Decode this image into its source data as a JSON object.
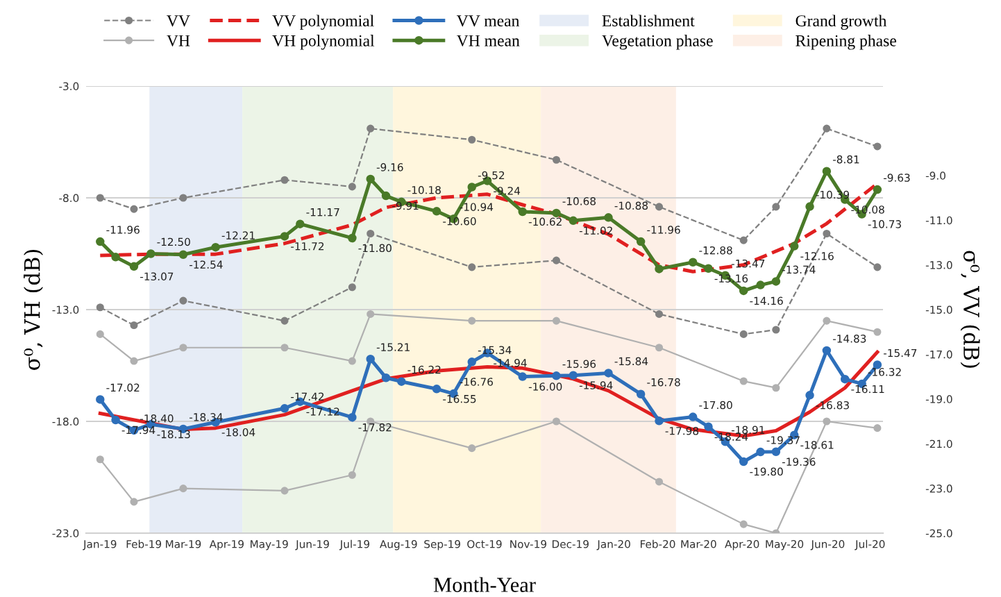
{
  "chart_data": {
    "type": "line",
    "xlabel": "Month-Year",
    "ylabel": "σ⁰, VH (dB)",
    "y2label": "σ⁰, VV (dB)",
    "x": [
      "2019-01-01",
      "2019-01-12",
      "2019-01-25",
      "2019-02-06",
      "2019-03-01",
      "2019-03-24",
      "2019-05-12",
      "2019-05-23",
      "2019-06-29",
      "2019-07-12",
      "2019-07-23",
      "2019-08-03",
      "2019-08-28",
      "2019-09-09",
      "2019-09-22",
      "2019-10-03",
      "2019-10-28",
      "2019-11-21",
      "2019-12-03",
      "2019-12-28",
      "2020-01-20",
      "2020-02-02",
      "2020-02-26",
      "2020-03-08",
      "2020-03-20",
      "2020-04-02",
      "2020-04-14",
      "2020-04-25",
      "2020-05-08",
      "2020-05-19",
      "2020-05-31",
      "2020-06-13",
      "2020-06-25",
      "2020-07-06"
    ],
    "xlim": [
      "2018-12-22",
      "2020-07-10"
    ],
    "xticks": [
      {
        "value": "2019-01-01",
        "label": "Jan-19"
      },
      {
        "value": "2019-02-01",
        "label": "Feb-19"
      },
      {
        "value": "2019-03-01",
        "label": "Mar-19"
      },
      {
        "value": "2019-04-01",
        "label": "Apr-19"
      },
      {
        "value": "2019-05-01",
        "label": "May-19"
      },
      {
        "value": "2019-06-01",
        "label": "Jun-19"
      },
      {
        "value": "2019-07-01",
        "label": "Jul-19"
      },
      {
        "value": "2019-08-01",
        "label": "Aug-19"
      },
      {
        "value": "2019-09-01",
        "label": "Sep-19"
      },
      {
        "value": "2019-10-01",
        "label": "Oct-19"
      },
      {
        "value": "2019-11-01",
        "label": "Nov-19"
      },
      {
        "value": "2019-12-01",
        "label": "Dec-19"
      },
      {
        "value": "2020-01-01",
        "label": "Jan-20"
      },
      {
        "value": "2020-02-01",
        "label": "Feb-20"
      },
      {
        "value": "2020-03-01",
        "label": "Mar-20"
      },
      {
        "value": "2020-04-01",
        "label": "Apr-20"
      },
      {
        "value": "2020-05-01",
        "label": "May-20"
      },
      {
        "value": "2020-06-01",
        "label": "Jun-20"
      },
      {
        "value": "2020-07-01",
        "label": "Jul-20"
      }
    ],
    "ylim": [
      -23,
      -3
    ],
    "yticks": [
      {
        "value": -3,
        "label": "-3.0"
      },
      {
        "value": -8,
        "label": "-8.0"
      },
      {
        "value": -13,
        "label": "-13.0"
      },
      {
        "value": -18,
        "label": "-18.0"
      },
      {
        "value": -23,
        "label": "-23.0"
      }
    ],
    "y2lim": [
      -25,
      -5
    ],
    "y2ticks": [
      {
        "value": -9,
        "label": "-9.0"
      },
      {
        "value": -11,
        "label": "-11.0"
      },
      {
        "value": -13,
        "label": "-13.0"
      },
      {
        "value": -15,
        "label": "-15.0"
      },
      {
        "value": -17,
        "label": "-17.0"
      },
      {
        "value": -19,
        "label": "-19.0"
      },
      {
        "value": -21,
        "label": "-21.0"
      },
      {
        "value": -23,
        "label": "-23.0"
      },
      {
        "value": -25,
        "label": "-25.0"
      }
    ],
    "grid": "y",
    "legend": "top",
    "bands": [
      {
        "axis": "x",
        "from": "2019-02-05",
        "to": "2019-04-12",
        "label": "Establishment",
        "color": "#e6ecf6"
      },
      {
        "axis": "x",
        "from": "2019-04-12",
        "to": "2019-07-28",
        "label": "Vegetation phase",
        "color": "#ecf4e7"
      },
      {
        "axis": "x",
        "from": "2019-07-28",
        "to": "2019-11-10",
        "label": "Grand growth",
        "color": "#fff6dd"
      },
      {
        "axis": "x",
        "from": "2019-11-10",
        "to": "2020-02-14",
        "label": "Ripening phase",
        "color": "#fdefe6"
      }
    ],
    "series": [
      {
        "name": "VV",
        "color": "#808080",
        "axis": "y2",
        "line_style": "dashed",
        "marker": "circle",
        "x": [
          "2019-01-01",
          "2019-01-25",
          "2019-03-01",
          "2019-05-12",
          "2019-06-29",
          "2019-07-12",
          "2019-09-22",
          "2019-11-21",
          "2020-02-02",
          "2020-04-02",
          "2020-04-25",
          "2020-05-31",
          "2020-07-06"
        ],
        "values": [
          -10.0,
          -10.5,
          -10.0,
          -9.2,
          -9.5,
          -6.9,
          -7.4,
          -8.3,
          -10.4,
          -11.9,
          -10.4,
          -6.9,
          -7.7
        ]
      },
      {
        "color": "#808080",
        "axis": "y2",
        "line_style": "dashed",
        "marker": "circle",
        "x": [
          "2019-01-01",
          "2019-01-25",
          "2019-03-01",
          "2019-05-12",
          "2019-06-29",
          "2019-07-12",
          "2019-09-22",
          "2019-11-21",
          "2020-02-02",
          "2020-04-02",
          "2020-04-25",
          "2020-05-31",
          "2020-07-06"
        ],
        "values": [
          -14.9,
          -15.7,
          -14.6,
          -15.5,
          -14.0,
          -11.6,
          -13.1,
          -12.8,
          -15.2,
          -16.1,
          -15.9,
          -11.6,
          -13.1
        ]
      },
      {
        "name": "VH",
        "color": "#b0b0b0",
        "axis": "y",
        "line_style": "solid",
        "marker": "circle",
        "x": [
          "2019-01-01",
          "2019-01-25",
          "2019-03-01",
          "2019-05-12",
          "2019-06-29",
          "2019-07-12",
          "2019-09-22",
          "2019-11-21",
          "2020-02-02",
          "2020-04-02",
          "2020-04-25",
          "2020-05-31",
          "2020-07-06"
        ],
        "values": [
          -14.1,
          -15.3,
          -14.7,
          -14.7,
          -15.3,
          -13.2,
          -13.5,
          -13.5,
          -14.7,
          -16.2,
          -16.5,
          -13.5,
          -14.0
        ]
      },
      {
        "color": "#b0b0b0",
        "axis": "y",
        "line_style": "solid",
        "marker": "circle",
        "x": [
          "2019-01-01",
          "2019-01-25",
          "2019-03-01",
          "2019-05-12",
          "2019-06-29",
          "2019-07-12",
          "2019-09-22",
          "2019-11-21",
          "2020-02-02",
          "2020-04-02",
          "2020-04-25",
          "2020-05-31",
          "2020-07-06"
        ],
        "values": [
          -19.7,
          -21.6,
          -21.0,
          -21.1,
          -20.4,
          -18.0,
          -19.2,
          -18.0,
          -20.7,
          -22.6,
          -23.0,
          -18.0,
          -18.3
        ]
      },
      {
        "name": "VV polynomial",
        "color": "#e02020",
        "axis": "y2",
        "line_style": "dashed",
        "marker": "none",
        "x": [
          "2019-01-01",
          "2019-02-05",
          "2019-03-24",
          "2019-05-12",
          "2019-06-29",
          "2019-07-23",
          "2019-08-28",
          "2019-10-03",
          "2019-10-28",
          "2019-11-21",
          "2019-12-28",
          "2020-02-02",
          "2020-02-26",
          "2020-04-02",
          "2020-05-08",
          "2020-05-31",
          "2020-07-06"
        ],
        "values": [
          -12.58,
          -12.52,
          -12.52,
          -12.04,
          -11.21,
          -10.43,
          -10.0,
          -9.84,
          -10.31,
          -10.73,
          -11.63,
          -13.0,
          -13.3,
          -13.0,
          -12.04,
          -11.15,
          -9.36
        ]
      },
      {
        "name": "VH polynomial",
        "color": "#e02020",
        "axis": "y",
        "line_style": "solid",
        "marker": "none",
        "x": [
          "2019-01-01",
          "2019-03-01",
          "2019-03-24",
          "2019-05-12",
          "2019-06-29",
          "2019-07-23",
          "2019-08-28",
          "2019-10-03",
          "2019-10-28",
          "2019-12-03",
          "2019-12-28",
          "2020-02-02",
          "2020-02-26",
          "2020-04-02",
          "2020-04-25",
          "2020-05-19",
          "2020-06-13",
          "2020-07-06"
        ],
        "values": [
          -17.64,
          -18.36,
          -18.3,
          -17.7,
          -16.63,
          -16.1,
          -15.74,
          -15.56,
          -15.62,
          -16.1,
          -16.63,
          -17.88,
          -18.36,
          -18.65,
          -18.42,
          -17.58,
          -16.5,
          -14.9
        ]
      },
      {
        "name": "VV mean",
        "color": "#2e6fba",
        "axis": "y",
        "line_style": "solid",
        "marker": "circle",
        "values": [
          -17.02,
          -17.94,
          -18.4,
          -18.13,
          -18.34,
          -18.04,
          -17.42,
          -17.12,
          -17.82,
          -15.21,
          -16.05,
          -16.22,
          -16.55,
          -16.76,
          -15.34,
          -14.94,
          -16.0,
          -15.96,
          -15.94,
          -15.84,
          -16.78,
          -17.98,
          -17.8,
          -18.24,
          -18.91,
          -19.8,
          -19.37,
          -19.36,
          -18.61,
          -16.83,
          -14.83,
          -16.11,
          -16.32,
          -15.47
        ],
        "value_labels": [
          "-17.02",
          "-17.94",
          "-18.40",
          "-18.13",
          "-18.34",
          "-18.04",
          "-17.42",
          "-17.12",
          "-17.82",
          "-15.21",
          null,
          "-16.22",
          "-16.55",
          "-16.76",
          "-15.34",
          "-14.94",
          "-16.00",
          "-15.96",
          "-15.94",
          "-15.84",
          "-16.78",
          "-17.98",
          "-17.80",
          "-18.24",
          "-18.91",
          "-19.80",
          "-19.37",
          "-19.36",
          "-18.61",
          "-16.83",
          "-14.83",
          "-16.11",
          "-16.32",
          "-15.47"
        ]
      },
      {
        "name": "VH mean",
        "color": "#4a7a28",
        "axis": "y2",
        "line_style": "solid",
        "marker": "circle",
        "values": [
          -11.96,
          -12.65,
          -13.07,
          -12.5,
          -12.54,
          -12.21,
          -11.72,
          -11.17,
          -11.8,
          -9.16,
          -9.91,
          -10.18,
          -10.6,
          -10.94,
          -9.52,
          -9.24,
          -10.62,
          -10.68,
          -11.02,
          -10.88,
          -11.96,
          -13.18,
          -12.88,
          -13.16,
          -13.47,
          -14.16,
          -13.9,
          -13.74,
          -12.16,
          -10.39,
          -8.81,
          -10.08,
          -10.73,
          -9.63
        ],
        "value_labels": [
          "-11.96",
          null,
          "-13.07",
          "-12.50",
          "-12.54",
          "-12.21",
          "-11.72",
          "-11.17",
          "-11.80",
          "-9.16",
          "-9.91",
          "-10.18",
          "-10.60",
          "-10.94",
          "-9.52",
          "-9.24",
          "-10.62",
          "-10.68",
          "-11.02",
          "-10.88",
          "-11.96",
          null,
          "-12.88",
          "-13.16",
          "-13.47",
          "-14.16",
          null,
          "-13.74",
          "-12.16",
          "-10.39",
          "-8.81",
          "-10.08",
          "-10.73",
          "-9.63"
        ]
      }
    ]
  }
}
